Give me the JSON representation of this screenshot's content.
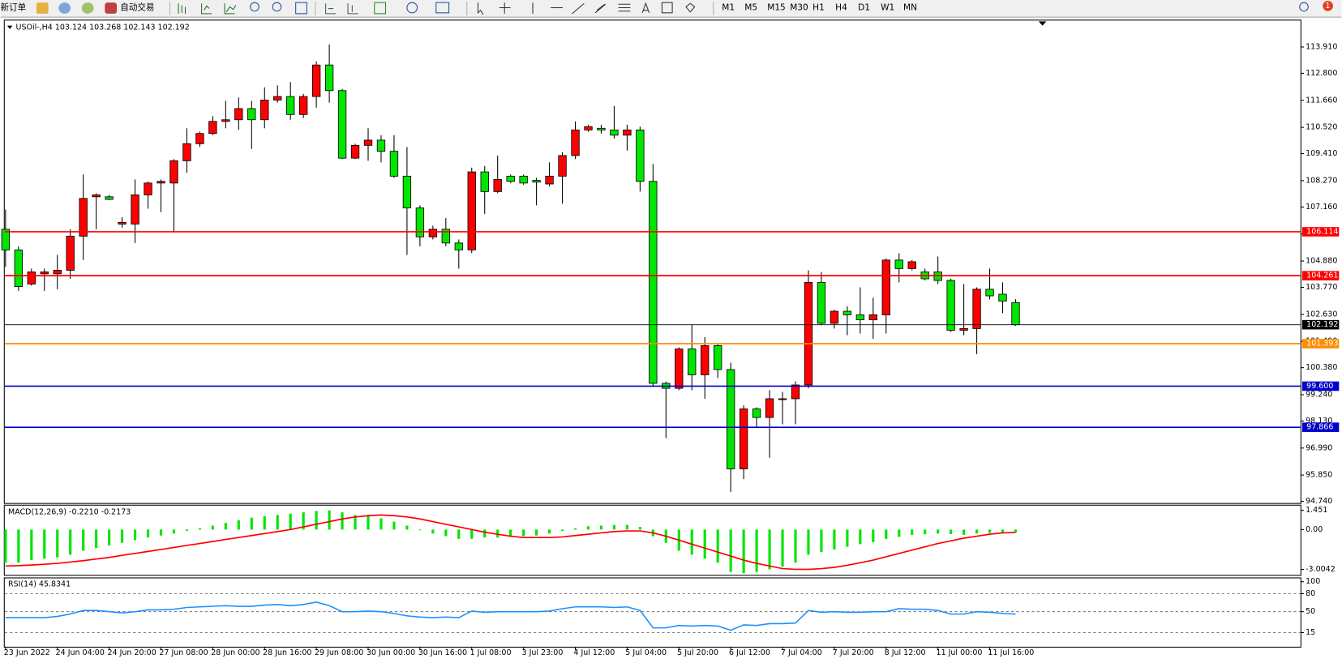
{
  "toolbar": {
    "new_order": "新订单",
    "auto_trade": "自动交易",
    "timeframes": [
      "M1",
      "M5",
      "M15",
      "M30",
      "H1",
      "H4",
      "D1",
      "W1",
      "MN"
    ],
    "notifications": 1
  },
  "chart_data": [
    {
      "type": "candlestick",
      "title": "USOil-,H4  103.124 103.268 102.143 102.192",
      "categories": [
        "23 Jun 2022",
        null,
        null,
        null,
        "24 Jun 04:00",
        null,
        null,
        null,
        "24 Jun 20:00",
        null,
        null,
        null,
        "27 Jun 08:00",
        null,
        null,
        null,
        "28 Jun 00:00",
        null,
        null,
        null,
        "28 Jun 16:00",
        null,
        null,
        null,
        "29 Jun 08:00",
        null,
        null,
        null,
        "30 Jun 00:00",
        null,
        null,
        null,
        "30 Jun 16:00",
        null,
        null,
        null,
        "1 Jul 08:00",
        null,
        null,
        null,
        "3 Jul 23:00",
        null,
        null,
        null,
        "4 Jul 12:00",
        null,
        null,
        null,
        "5 Jul 04:00",
        null,
        null,
        null,
        "5 Jul 20:00",
        null,
        null,
        null,
        "6 Jul 12:00",
        null,
        null,
        null,
        "7 Jul 04:00",
        null,
        null,
        null,
        "7 Jul 20:00",
        null,
        null,
        null,
        "8 Jul 12:00",
        null,
        null,
        null,
        "11 Jul 00:00",
        null,
        null,
        null,
        "11 Jul 16:00",
        null,
        null
      ],
      "open": [
        106.22,
        105.35,
        103.91,
        104.34,
        104.34,
        104.49,
        105.93,
        107.59,
        107.59,
        106.44,
        106.44,
        107.67,
        108.17,
        108.17,
        109.11,
        109.83,
        110.26,
        110.77,
        110.84,
        111.31,
        110.84,
        111.67,
        111.82,
        111.06,
        111.82,
        113.15,
        112.07,
        109.22,
        109.76,
        109.98,
        109.51,
        108.46,
        107.12,
        105.9,
        106.22,
        105.64,
        105.35,
        108.64,
        107.81,
        108.46,
        108.46,
        108.28,
        108.13,
        108.46,
        109.33,
        110.41,
        110.48,
        110.41,
        110.19,
        110.41,
        108.24,
        99.72,
        99.51,
        101.17,
        100.08,
        101.31,
        100.3,
        96.11,
        98.64,
        98.28,
        99.04,
        99.07,
        99.65,
        103.98,
        102.25,
        102.76,
        102.61,
        102.4,
        102.61,
        104.92,
        104.56,
        104.42,
        104.42,
        104.06,
        101.96,
        102.03,
        103.69,
        103.48,
        103.124
      ],
      "high": [
        107.05,
        105.5,
        104.56,
        104.56,
        105.14,
        106.22,
        108.53,
        107.74,
        107.67,
        106.73,
        108.32,
        108.24,
        108.32,
        109.18,
        110.48,
        110.34,
        110.99,
        111.64,
        111.78,
        111.64,
        112.21,
        112.29,
        112.43,
        111.93,
        113.3,
        114.02,
        112.14,
        109.83,
        110.48,
        110.19,
        110.19,
        109.69,
        107.23,
        106.37,
        106.69,
        105.79,
        108.82,
        108.89,
        109.33,
        108.53,
        108.53,
        108.39,
        109.04,
        109.47,
        110.77,
        110.63,
        110.63,
        111.42,
        110.63,
        110.55,
        108.97,
        99.8,
        101.24,
        102.18,
        101.67,
        101.38,
        100.59,
        98.79,
        98.71,
        99.43,
        99.36,
        99.8,
        104.49,
        104.42,
        102.83,
        102.97,
        103.77,
        103.33,
        104.99,
        105.21,
        104.92,
        104.56,
        105.07,
        104.13,
        103.91,
        103.77,
        104.56,
        103.98,
        103.268
      ],
      "low": [
        104.63,
        103.62,
        103.84,
        103.62,
        103.69,
        104.13,
        104.92,
        106.22,
        107.45,
        106.29,
        105.64,
        107.09,
        106.94,
        106.08,
        108.6,
        109.69,
        110.19,
        110.48,
        110.41,
        109.61,
        110.48,
        111.56,
        110.84,
        110.91,
        111.35,
        111.56,
        109.18,
        109.18,
        109.11,
        109.04,
        108.39,
        105.14,
        105.5,
        105.79,
        105.5,
        104.56,
        105.21,
        106.87,
        107.74,
        108.17,
        108.1,
        107.23,
        108.03,
        107.3,
        109.18,
        110.34,
        110.26,
        110.05,
        109.54,
        107.81,
        99.58,
        97.41,
        99.43,
        99.43,
        99.07,
        99.94,
        95.14,
        95.68,
        97.85,
        96.58,
        97.99,
        97.99,
        99.51,
        102.18,
        102.03,
        101.75,
        101.82,
        101.6,
        101.82,
        103.98,
        104.49,
        104.06,
        103.91,
        101.89,
        101.75,
        100.95,
        103.26,
        102.68,
        102.143
      ],
      "close": [
        105.35,
        103.8,
        104.42,
        104.42,
        104.49,
        105.93,
        107.52,
        107.67,
        107.48,
        106.51,
        107.67,
        108.17,
        108.24,
        109.11,
        109.83,
        110.26,
        110.77,
        110.84,
        111.31,
        110.84,
        111.67,
        111.82,
        111.06,
        111.82,
        113.15,
        112.07,
        109.22,
        109.76,
        109.98,
        109.51,
        108.46,
        107.12,
        105.9,
        106.22,
        105.64,
        105.35,
        108.64,
        107.81,
        108.32,
        108.24,
        108.17,
        108.21,
        108.46,
        109.33,
        110.41,
        110.55,
        110.41,
        110.19,
        110.41,
        108.24,
        99.72,
        99.51,
        101.17,
        100.08,
        101.31,
        100.3,
        96.11,
        98.64,
        98.28,
        99.07,
        99.07,
        99.65,
        103.98,
        102.25,
        102.76,
        102.61,
        102.4,
        102.61,
        104.92,
        104.56,
        104.85,
        104.13,
        104.06,
        101.96,
        102.03,
        103.69,
        103.41,
        103.19,
        102.192
      ],
      "up_color": "#ff0000",
      "down_color": "#00e600",
      "wick_color": "#000000",
      "ylim": [
        94.67,
        114.99
      ],
      "yticks": [
        {
          "value": 113.91,
          "label": "113.910"
        },
        {
          "value": 112.8,
          "label": "112.800"
        },
        {
          "value": 111.66,
          "label": "111.660"
        },
        {
          "value": 110.52,
          "label": "110.520"
        },
        {
          "value": 109.41,
          "label": "109.410"
        },
        {
          "value": 108.27,
          "label": "108.270"
        },
        {
          "value": 107.16,
          "label": "107.160"
        },
        {
          "value": 106.02,
          "label": "106.020"
        },
        {
          "value": 104.88,
          "label": "104.880"
        },
        {
          "value": 103.77,
          "label": "103.770"
        },
        {
          "value": 102.63,
          "label": "102.630"
        },
        {
          "value": 101.49,
          "label": "101.490"
        },
        {
          "value": 100.38,
          "label": "100.380"
        },
        {
          "value": 99.24,
          "label": "99.240"
        },
        {
          "value": 98.13,
          "label": "98.130"
        },
        {
          "value": 96.99,
          "label": "96.990"
        },
        {
          "value": 95.85,
          "label": "95.850"
        },
        {
          "value": 94.74,
          "label": "94.740"
        }
      ],
      "hlines": [
        {
          "value": 106.114,
          "label": "106.114",
          "color": "#ff0000"
        },
        {
          "value": 104.261,
          "label": "104.261",
          "color": "#ff0000"
        },
        {
          "value": 102.192,
          "label": "102.192",
          "color": "#000000"
        },
        {
          "value": 101.393,
          "label": "101.393",
          "color": "#ff8c00"
        },
        {
          "value": 99.6,
          "label": "99.600",
          "color": "#0000cd"
        },
        {
          "value": 97.866,
          "label": "97.866",
          "color": "#0000cd"
        }
      ]
    },
    {
      "type": "macd",
      "title": "MACD(12,26,9) -0.2210 -0.2173",
      "histogram": {
        "color": "#00e600",
        "values": [
          -2.5,
          -2.5,
          -2.3,
          -2.2,
          -2.1,
          -1.9,
          -1.6,
          -1.4,
          -1.2,
          -1.0,
          -0.8,
          -0.6,
          -0.45,
          -0.3,
          -0.1,
          0.1,
          0.3,
          0.5,
          0.7,
          0.9,
          1.0,
          1.1,
          1.2,
          1.3,
          1.4,
          1.45,
          1.3,
          1.1,
          1.0,
          0.85,
          0.6,
          0.3,
          0.0,
          -0.3,
          -0.5,
          -0.7,
          -0.7,
          -0.6,
          -0.6,
          -0.55,
          -0.5,
          -0.45,
          -0.3,
          -0.1,
          0.1,
          0.25,
          0.3,
          0.35,
          0.35,
          0.2,
          -0.5,
          -1.0,
          -1.6,
          -1.9,
          -2.2,
          -2.5,
          -3.2,
          -3.3,
          -3.2,
          -3.0,
          -2.8,
          -2.5,
          -1.9,
          -1.7,
          -1.5,
          -1.3,
          -1.1,
          -0.95,
          -0.7,
          -0.55,
          -0.4,
          -0.35,
          -0.3,
          -0.35,
          -0.4,
          -0.3,
          -0.25,
          -0.22,
          -0.221
        ]
      },
      "signal": {
        "color": "#ff0000",
        "values": [
          -2.75,
          -2.72,
          -2.68,
          -2.62,
          -2.55,
          -2.45,
          -2.35,
          -2.22,
          -2.1,
          -1.95,
          -1.8,
          -1.65,
          -1.5,
          -1.35,
          -1.2,
          -1.05,
          -0.9,
          -0.75,
          -0.6,
          -0.45,
          -0.3,
          -0.15,
          0.0,
          0.2,
          0.4,
          0.6,
          0.8,
          0.95,
          1.05,
          1.1,
          1.05,
          0.95,
          0.8,
          0.6,
          0.4,
          0.2,
          0.0,
          -0.2,
          -0.35,
          -0.5,
          -0.6,
          -0.6,
          -0.6,
          -0.55,
          -0.45,
          -0.35,
          -0.25,
          -0.15,
          -0.1,
          -0.1,
          -0.25,
          -0.5,
          -0.8,
          -1.1,
          -1.4,
          -1.7,
          -2.0,
          -2.3,
          -2.55,
          -2.75,
          -2.95,
          -3.0,
          -3.0,
          -2.95,
          -2.85,
          -2.7,
          -2.5,
          -2.3,
          -2.05,
          -1.8,
          -1.55,
          -1.3,
          -1.05,
          -0.85,
          -0.65,
          -0.5,
          -0.35,
          -0.25,
          -0.2173
        ]
      },
      "ylim": [
        -3.42,
        1.81
      ],
      "yticks": [
        1.451,
        {
          "value": 0,
          "label": "0.00"
        },
        -3.0042
      ]
    },
    {
      "type": "rsi",
      "title": "RSI(14) 45.8341",
      "color": "#1e90ff",
      "values": [
        40,
        40,
        40,
        40,
        42,
        46,
        52,
        52,
        50,
        48,
        50,
        53,
        53,
        54,
        57,
        58,
        59,
        60,
        59,
        59,
        61,
        62,
        60,
        62,
        66,
        60,
        50,
        50,
        51,
        50,
        47,
        43,
        41,
        40,
        41,
        40,
        51,
        49,
        50,
        50,
        50,
        50,
        51,
        55,
        58,
        58,
        58,
        57,
        58,
        52,
        23,
        23,
        27,
        26,
        27,
        26,
        19,
        28,
        27,
        30,
        30,
        31,
        52,
        49,
        50,
        49,
        49,
        50,
        50,
        55,
        54,
        54,
        52,
        46,
        46,
        50,
        49,
        47,
        45.8341
      ],
      "ylim": [
        -8.6,
        105.7
      ],
      "yticks": [
        100,
        80,
        50,
        15
      ],
      "levels": [
        80,
        50,
        15
      ]
    }
  ]
}
